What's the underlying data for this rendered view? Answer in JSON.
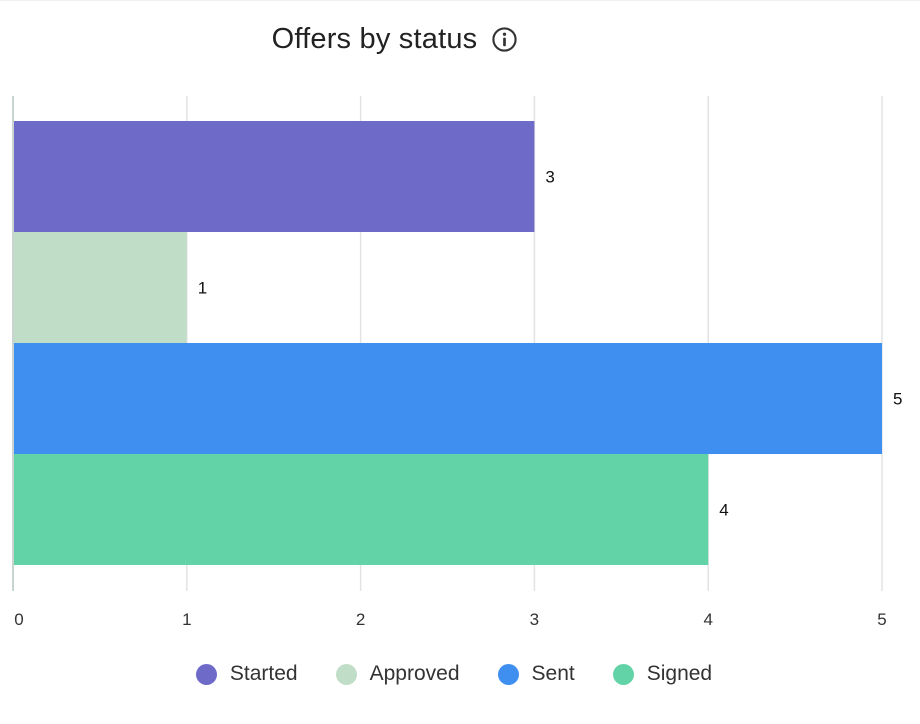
{
  "header": {
    "title": "Offers by status",
    "info_icon": "info-circle-icon"
  },
  "chart_data": {
    "type": "bar",
    "orientation": "horizontal",
    "title": "Offers by status",
    "xlabel": "",
    "ylabel": "",
    "xlim": [
      0,
      5
    ],
    "x_ticks": [
      0,
      1,
      2,
      3,
      4,
      5
    ],
    "grid": true,
    "legend_position": "bottom",
    "categories": [
      "Started",
      "Approved",
      "Sent",
      "Signed"
    ],
    "values": [
      3,
      1,
      5,
      4
    ],
    "colors": [
      "#6e6ac8",
      "#c0dec7",
      "#3e8ff0",
      "#62d3a6"
    ],
    "data_labels": [
      "3",
      "1",
      "5",
      "4"
    ]
  },
  "legend": {
    "items": [
      {
        "label": "Started",
        "color": "#6e6ac8"
      },
      {
        "label": "Approved",
        "color": "#c0dec7"
      },
      {
        "label": "Sent",
        "color": "#3e8ff0"
      },
      {
        "label": "Signed",
        "color": "#62d3a6"
      }
    ]
  }
}
